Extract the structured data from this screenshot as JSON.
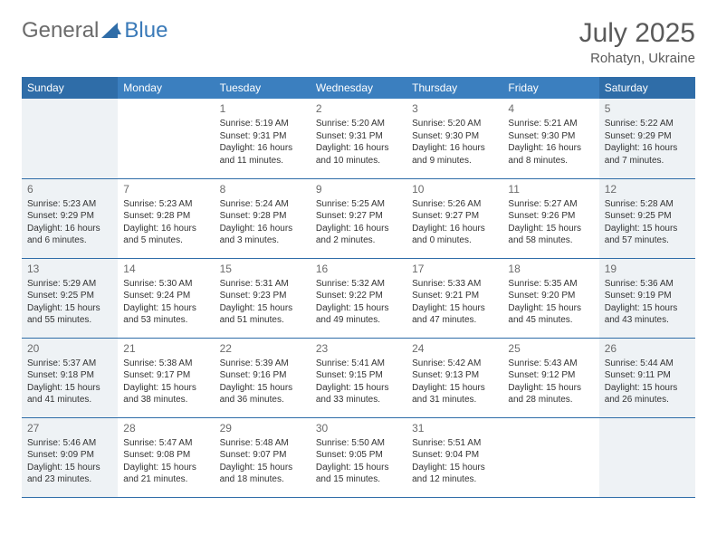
{
  "logo": {
    "text1": "General",
    "text2": "Blue",
    "icon_color": "#2f6da8"
  },
  "title": "July 2025",
  "location": "Rohatyn, Ukraine",
  "colors": {
    "header_bg": "#3b7fbf",
    "header_weekend_bg": "#2f6da8",
    "weekend_cell_bg": "#eef2f5",
    "border": "#2f6da8",
    "text_gray": "#6b6b6b",
    "text_dark": "#333333"
  },
  "day_headers": [
    "Sunday",
    "Monday",
    "Tuesday",
    "Wednesday",
    "Thursday",
    "Friday",
    "Saturday"
  ],
  "weeks": [
    [
      null,
      null,
      {
        "n": "1",
        "sunrise": "5:19 AM",
        "sunset": "9:31 PM",
        "daylight": "16 hours and 11 minutes."
      },
      {
        "n": "2",
        "sunrise": "5:20 AM",
        "sunset": "9:31 PM",
        "daylight": "16 hours and 10 minutes."
      },
      {
        "n": "3",
        "sunrise": "5:20 AM",
        "sunset": "9:30 PM",
        "daylight": "16 hours and 9 minutes."
      },
      {
        "n": "4",
        "sunrise": "5:21 AM",
        "sunset": "9:30 PM",
        "daylight": "16 hours and 8 minutes."
      },
      {
        "n": "5",
        "sunrise": "5:22 AM",
        "sunset": "9:29 PM",
        "daylight": "16 hours and 7 minutes."
      }
    ],
    [
      {
        "n": "6",
        "sunrise": "5:23 AM",
        "sunset": "9:29 PM",
        "daylight": "16 hours and 6 minutes."
      },
      {
        "n": "7",
        "sunrise": "5:23 AM",
        "sunset": "9:28 PM",
        "daylight": "16 hours and 5 minutes."
      },
      {
        "n": "8",
        "sunrise": "5:24 AM",
        "sunset": "9:28 PM",
        "daylight": "16 hours and 3 minutes."
      },
      {
        "n": "9",
        "sunrise": "5:25 AM",
        "sunset": "9:27 PM",
        "daylight": "16 hours and 2 minutes."
      },
      {
        "n": "10",
        "sunrise": "5:26 AM",
        "sunset": "9:27 PM",
        "daylight": "16 hours and 0 minutes."
      },
      {
        "n": "11",
        "sunrise": "5:27 AM",
        "sunset": "9:26 PM",
        "daylight": "15 hours and 58 minutes."
      },
      {
        "n": "12",
        "sunrise": "5:28 AM",
        "sunset": "9:25 PM",
        "daylight": "15 hours and 57 minutes."
      }
    ],
    [
      {
        "n": "13",
        "sunrise": "5:29 AM",
        "sunset": "9:25 PM",
        "daylight": "15 hours and 55 minutes."
      },
      {
        "n": "14",
        "sunrise": "5:30 AM",
        "sunset": "9:24 PM",
        "daylight": "15 hours and 53 minutes."
      },
      {
        "n": "15",
        "sunrise": "5:31 AM",
        "sunset": "9:23 PM",
        "daylight": "15 hours and 51 minutes."
      },
      {
        "n": "16",
        "sunrise": "5:32 AM",
        "sunset": "9:22 PM",
        "daylight": "15 hours and 49 minutes."
      },
      {
        "n": "17",
        "sunrise": "5:33 AM",
        "sunset": "9:21 PM",
        "daylight": "15 hours and 47 minutes."
      },
      {
        "n": "18",
        "sunrise": "5:35 AM",
        "sunset": "9:20 PM",
        "daylight": "15 hours and 45 minutes."
      },
      {
        "n": "19",
        "sunrise": "5:36 AM",
        "sunset": "9:19 PM",
        "daylight": "15 hours and 43 minutes."
      }
    ],
    [
      {
        "n": "20",
        "sunrise": "5:37 AM",
        "sunset": "9:18 PM",
        "daylight": "15 hours and 41 minutes."
      },
      {
        "n": "21",
        "sunrise": "5:38 AM",
        "sunset": "9:17 PM",
        "daylight": "15 hours and 38 minutes."
      },
      {
        "n": "22",
        "sunrise": "5:39 AM",
        "sunset": "9:16 PM",
        "daylight": "15 hours and 36 minutes."
      },
      {
        "n": "23",
        "sunrise": "5:41 AM",
        "sunset": "9:15 PM",
        "daylight": "15 hours and 33 minutes."
      },
      {
        "n": "24",
        "sunrise": "5:42 AM",
        "sunset": "9:13 PM",
        "daylight": "15 hours and 31 minutes."
      },
      {
        "n": "25",
        "sunrise": "5:43 AM",
        "sunset": "9:12 PM",
        "daylight": "15 hours and 28 minutes."
      },
      {
        "n": "26",
        "sunrise": "5:44 AM",
        "sunset": "9:11 PM",
        "daylight": "15 hours and 26 minutes."
      }
    ],
    [
      {
        "n": "27",
        "sunrise": "5:46 AM",
        "sunset": "9:09 PM",
        "daylight": "15 hours and 23 minutes."
      },
      {
        "n": "28",
        "sunrise": "5:47 AM",
        "sunset": "9:08 PM",
        "daylight": "15 hours and 21 minutes."
      },
      {
        "n": "29",
        "sunrise": "5:48 AM",
        "sunset": "9:07 PM",
        "daylight": "15 hours and 18 minutes."
      },
      {
        "n": "30",
        "sunrise": "5:50 AM",
        "sunset": "9:05 PM",
        "daylight": "15 hours and 15 minutes."
      },
      {
        "n": "31",
        "sunrise": "5:51 AM",
        "sunset": "9:04 PM",
        "daylight": "15 hours and 12 minutes."
      },
      null,
      null
    ]
  ],
  "labels": {
    "sunrise_prefix": "Sunrise: ",
    "sunset_prefix": "Sunset: ",
    "daylight_prefix": "Daylight: "
  }
}
